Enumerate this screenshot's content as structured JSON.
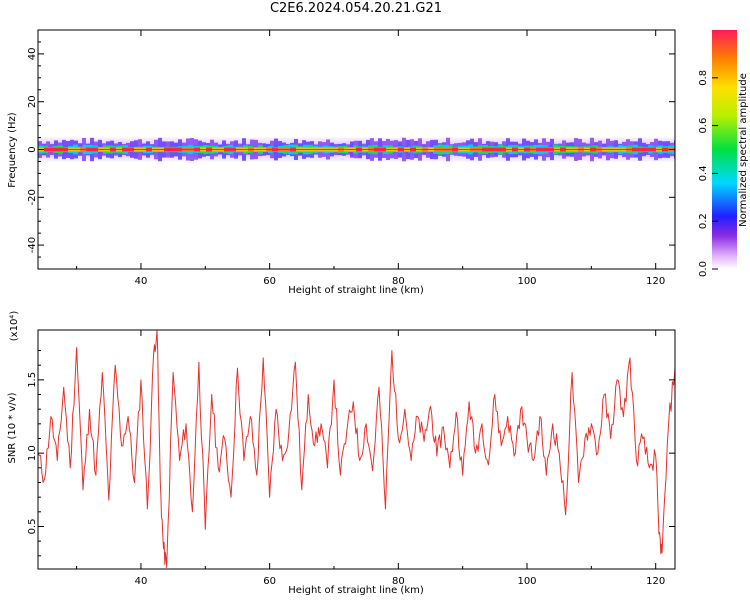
{
  "title": "C2E6.2024.054.20.21.G21",
  "chart_data": [
    {
      "type": "heatmap",
      "xlabel": "Height of straight line (km)",
      "ylabel": "Frequency (Hz)",
      "xlim": [
        24,
        123
      ],
      "ylim": [
        -50,
        50
      ],
      "xticks": [
        40,
        60,
        80,
        100,
        120
      ],
      "yticks": [
        -40,
        -20,
        0,
        20,
        40
      ],
      "colorbar": {
        "label": "Normalized spectral amplitude",
        "range": [
          0,
          1
        ],
        "ticks": [
          "0.0",
          "0.2",
          "0.4",
          "0.6",
          "0.8"
        ]
      },
      "band_center_hz": 0
    },
    {
      "type": "line",
      "xlabel": "Height of straight line (km)",
      "ylabel": "SNR (10 * v/v)",
      "multiplier": "(x10⁴)",
      "xlim": [
        24,
        123
      ],
      "ylim": [
        0.21,
        1.84
      ],
      "xticks": [
        40,
        60,
        80,
        100,
        120
      ],
      "yticks": [
        "0.5",
        "1.0",
        "1.5"
      ],
      "color": "#e8302a",
      "series": [
        {
          "x": [
            24,
            25,
            26,
            27,
            28,
            29,
            30,
            31,
            32,
            33,
            34,
            35,
            36,
            37,
            38,
            39,
            40,
            41,
            42,
            42.5,
            43,
            43.5,
            44,
            45,
            46,
            47,
            48,
            49,
            50,
            51,
            52,
            53,
            54,
            55,
            56,
            57,
            58,
            59,
            60,
            61,
            62,
            63,
            64,
            65,
            66,
            67,
            68,
            69,
            70,
            71,
            72,
            73,
            74,
            75,
            76,
            77,
            78,
            79,
            80,
            81,
            82,
            83,
            84,
            85,
            86,
            87,
            88,
            89,
            90,
            91,
            92,
            93,
            94,
            95,
            96,
            97,
            98,
            99,
            100,
            101,
            102,
            103,
            104,
            105,
            106,
            107,
            108,
            109,
            110,
            111,
            112,
            113,
            114,
            115,
            116,
            117,
            118,
            119,
            120,
            120.5,
            121,
            122,
            123
          ],
          "y": [
            1.0,
            0.82,
            1.25,
            0.95,
            1.45,
            0.9,
            1.72,
            0.75,
            1.3,
            0.85,
            1.55,
            0.68,
            1.6,
            1.05,
            1.25,
            0.8,
            1.5,
            0.62,
            1.7,
            1.84,
            0.8,
            0.35,
            0.22,
            1.55,
            0.95,
            1.2,
            0.6,
            1.62,
            0.48,
            1.4,
            0.9,
            1.1,
            0.7,
            1.58,
            0.95,
            1.25,
            0.85,
            1.65,
            0.7,
            1.3,
            0.95,
            1.15,
            1.62,
            0.75,
            1.4,
            1.05,
            1.2,
            0.9,
            1.5,
            0.85,
            1.15,
            1.35,
            0.95,
            1.2,
            0.88,
            1.45,
            0.62,
            1.7,
            1.1,
            1.3,
            0.95,
            1.25,
            1.08,
            1.32,
            0.98,
            1.18,
            0.9,
            1.28,
            0.85,
            1.35,
            1.0,
            1.2,
            0.92,
            1.4,
            1.05,
            1.25,
            0.98,
            1.3,
            1.1,
            0.95,
            1.25,
            0.85,
            1.2,
            1.0,
            0.58,
            1.55,
            0.8,
            1.1,
            1.2,
            1.0,
            1.4,
            1.1,
            1.5,
            1.25,
            1.65,
            0.95,
            1.1,
            0.9,
            0.98,
            0.45,
            0.32,
            1.2,
            1.58
          ]
        }
      ]
    }
  ]
}
